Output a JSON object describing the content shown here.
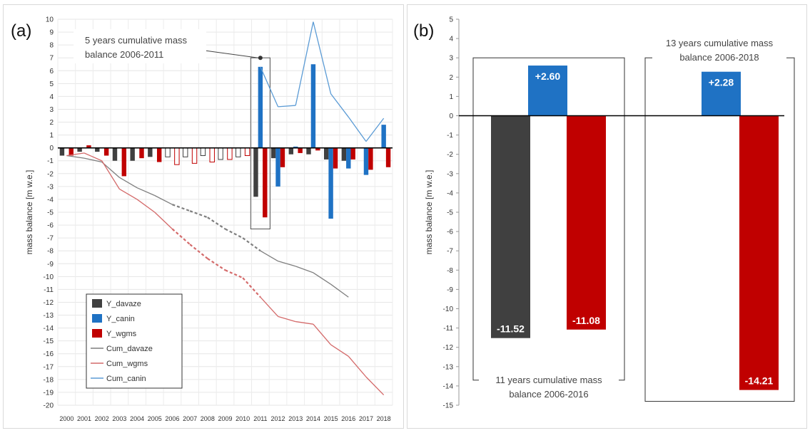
{
  "chart_data": [
    {
      "type": "bar",
      "panel_label": "(a)",
      "ylabel": "mass balance [m w.e.]",
      "ylim": [
        -20,
        10
      ],
      "yticks": [
        10,
        9,
        8,
        7,
        6,
        5,
        4,
        3,
        2,
        1,
        0,
        -1,
        -2,
        -3,
        -4,
        -5,
        -6,
        -7,
        -8,
        -9,
        -10,
        -11,
        -12,
        -13,
        -14,
        -15,
        -16,
        -17,
        -18,
        -19,
        -20
      ],
      "grid": true,
      "legend_placement": "bottom-left",
      "annotation": {
        "lines": [
          "5 years cumulative mass",
          "balance 2006-2011"
        ],
        "target_x": 2011,
        "target_y": 7.0
      },
      "categories": [
        "2000",
        "2001",
        "2002",
        "2003",
        "2004",
        "2005",
        "2006",
        "2007",
        "2008",
        "2009",
        "2010",
        "2011",
        "2012",
        "2013",
        "2014",
        "2015",
        "2016",
        "2017",
        "2018"
      ],
      "series": [
        {
          "name": "Y_davaze",
          "kind": "bar",
          "color": "#404040",
          "values": [
            -0.6,
            -0.3,
            -0.3,
            -1.0,
            -1.0,
            -0.7,
            -0.7,
            -0.7,
            -0.6,
            -0.9,
            -0.7,
            -3.8,
            -0.8,
            -0.5,
            -0.5,
            -0.9,
            -1.0,
            null,
            null
          ],
          "outline_only_years": [
            "2006",
            "2007",
            "2008",
            "2009",
            "2010"
          ]
        },
        {
          "name": "Y_canin",
          "kind": "bar",
          "color": "#1f72c4",
          "values": [
            null,
            null,
            null,
            null,
            null,
            null,
            null,
            null,
            null,
            null,
            null,
            6.3,
            -3.0,
            0.1,
            6.5,
            -5.5,
            -1.6,
            -2.1,
            1.8
          ]
        },
        {
          "name": "Y_wgms",
          "kind": "bar",
          "color": "#c00000",
          "values": [
            -0.6,
            0.2,
            -0.6,
            -2.2,
            -0.8,
            -1.1,
            -1.3,
            -1.2,
            -1.1,
            -0.9,
            -0.6,
            -5.4,
            -1.5,
            -0.4,
            -0.2,
            -1.6,
            -0.9,
            -1.7,
            -1.5
          ],
          "outline_only_years": [
            "2006",
            "2007",
            "2008",
            "2009",
            "2010"
          ]
        },
        {
          "name": "Cum_davaze",
          "kind": "line",
          "color": "#7f7f7f",
          "x": [
            "2000",
            "2001",
            "2002",
            "2003",
            "2004",
            "2005",
            "2006",
            "2007",
            "2008",
            "2009",
            "2010",
            "2011",
            "2012",
            "2013",
            "2014",
            "2015",
            "2016"
          ],
          "values": [
            -0.6,
            -0.8,
            -1.1,
            -2.3,
            -3.1,
            -3.7,
            -4.4,
            -4.9,
            -5.4,
            -6.3,
            -7.0,
            -8.0,
            -8.8,
            -9.2,
            -9.7,
            -10.6,
            -11.6
          ],
          "dashed_between": [
            "2006",
            "2011"
          ]
        },
        {
          "name": "Cum_wgms",
          "kind": "line",
          "color": "#d46a6a",
          "x": [
            "2000",
            "2001",
            "2002",
            "2003",
            "2004",
            "2005",
            "2006",
            "2007",
            "2008",
            "2009",
            "2010",
            "2011",
            "2012",
            "2013",
            "2014",
            "2015",
            "2016",
            "2017",
            "2018"
          ],
          "values": [
            -0.6,
            -0.4,
            -1.0,
            -3.2,
            -4.0,
            -5.0,
            -6.3,
            -7.5,
            -8.6,
            -9.5,
            -10.1,
            -11.6,
            -13.1,
            -13.5,
            -13.7,
            -15.3,
            -16.2,
            -17.8,
            -19.2
          ],
          "dashed_between": [
            "2006",
            "2011"
          ]
        },
        {
          "name": "Cum_canin",
          "kind": "line",
          "color": "#5b9bd5",
          "x": [
            "2011",
            "2012",
            "2013",
            "2014",
            "2015",
            "2016",
            "2017",
            "2018"
          ],
          "values": [
            6.3,
            3.2,
            3.3,
            9.8,
            4.2,
            2.4,
            0.5,
            2.3
          ]
        }
      ]
    },
    {
      "type": "bar",
      "panel_label": "(b)",
      "ylabel": "mass balance [m w.e.]",
      "ylim": [
        -15,
        5
      ],
      "yticks": [
        5,
        4,
        3,
        2,
        1,
        0,
        -1,
        -2,
        -3,
        -4,
        -5,
        -6,
        -7,
        -8,
        -9,
        -10,
        -11,
        -12,
        -13,
        -14,
        -15
      ],
      "grid": false,
      "groups": [
        {
          "caption": [
            "11 years cumulative mass",
            "balance 2006-2016"
          ],
          "caption_position": "bottom",
          "bars": [
            {
              "series": "davaze",
              "value": -11.52,
              "label": "-11.52",
              "color": "#404040"
            },
            {
              "series": "canin",
              "value": 2.6,
              "label": "+2.60",
              "color": "#1f72c4"
            },
            {
              "series": "wgms",
              "value": -11.08,
              "label": "-11.08",
              "color": "#c00000"
            }
          ]
        },
        {
          "caption": [
            "13 years cumulative mass",
            "balance 2006-2018"
          ],
          "caption_position": "top",
          "bars": [
            {
              "series": "canin",
              "value": 2.28,
              "label": "+2.28",
              "color": "#1f72c4"
            },
            {
              "series": "wgms",
              "value": -14.21,
              "label": "-14.21",
              "color": "#c00000"
            }
          ]
        }
      ]
    }
  ]
}
